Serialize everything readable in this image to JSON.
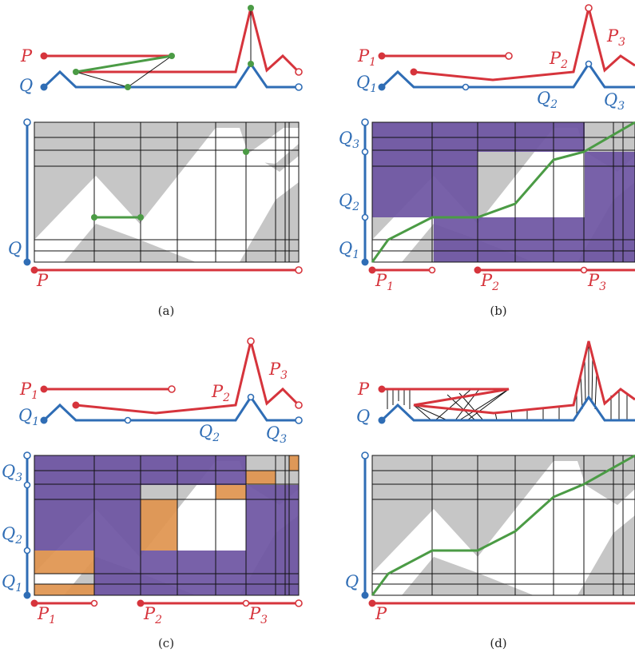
{
  "colors": {
    "p_curve": "#d6343c",
    "q_curve": "#2f6db5",
    "match": "#4b9b45",
    "free_space": "#c6c6c6",
    "blocked": "#6e55a3",
    "highlight": "#e0944e",
    "grid": "#111111"
  },
  "panels": [
    {
      "caption": "(a)",
      "curve_labels": {
        "p": "P",
        "q": "Q"
      },
      "axis_labels": {
        "horizontal": "P",
        "vertical": "Q"
      }
    },
    {
      "caption": "(b)",
      "curve_labels": {
        "p": [
          {
            "base": "P",
            "sub": "1"
          },
          {
            "base": "P",
            "sub": "2"
          },
          {
            "base": "P",
            "sub": "3"
          }
        ],
        "q": [
          {
            "base": "Q",
            "sub": "1"
          },
          {
            "base": "Q",
            "sub": "2"
          },
          {
            "base": "Q",
            "sub": "3"
          }
        ]
      },
      "axis_labels": {
        "horizontal": [
          {
            "base": "P",
            "sub": "1"
          },
          {
            "base": "P",
            "sub": "2"
          },
          {
            "base": "P",
            "sub": "3"
          }
        ],
        "vertical": [
          {
            "base": "Q",
            "sub": "1"
          },
          {
            "base": "Q",
            "sub": "2"
          },
          {
            "base": "Q",
            "sub": "3"
          }
        ]
      }
    },
    {
      "caption": "(c)",
      "curve_labels": {
        "p": [
          {
            "base": "P",
            "sub": "1"
          },
          {
            "base": "P",
            "sub": "2"
          },
          {
            "base": "P",
            "sub": "3"
          }
        ],
        "q": [
          {
            "base": "Q",
            "sub": "1"
          },
          {
            "base": "Q",
            "sub": "2"
          },
          {
            "base": "Q",
            "sub": "3"
          }
        ]
      },
      "axis_labels": {
        "horizontal": [
          {
            "base": "P",
            "sub": "1"
          },
          {
            "base": "P",
            "sub": "2"
          },
          {
            "base": "P",
            "sub": "3"
          }
        ],
        "vertical": [
          {
            "base": "Q",
            "sub": "1"
          },
          {
            "base": "Q",
            "sub": "2"
          },
          {
            "base": "Q",
            "sub": "3"
          }
        ]
      }
    },
    {
      "caption": "(d)",
      "curve_labels": {
        "p": "P",
        "q": "Q"
      },
      "axis_labels": {
        "horizontal": "P",
        "vertical": "Q"
      }
    }
  ]
}
